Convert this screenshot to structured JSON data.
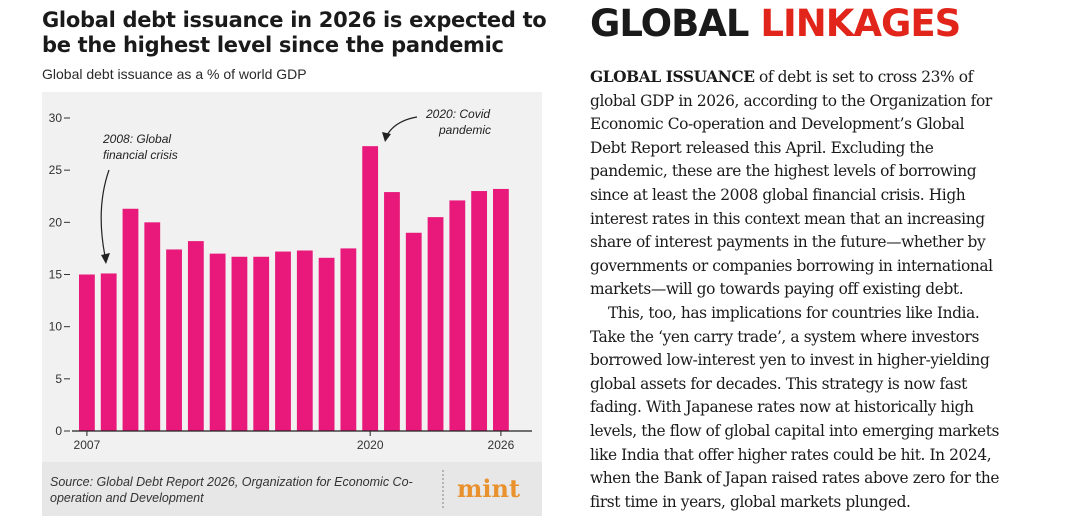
{
  "title_lines": [
    "Global debt issuance in 2026 is expected to",
    "be the highest level since the pandemic"
  ],
  "subtitle": "Global debt issuance as a % of world GDP",
  "source": "Source: Global Debt Report 2026, Organization for Economic Co-operation and Development",
  "logo": "mint",
  "colors": {
    "bar": "#e8197a",
    "heading_dark": "#1a1a1a",
    "heading_accent": "#e1251b",
    "logo": "#e8912d",
    "plot_background": "#f1f1f1"
  },
  "chart_data": {
    "type": "bar",
    "title": "Global debt issuance in 2026 is expected to be the highest level since the pandemic",
    "subtitle": "Global debt issuance as a % of world GDP",
    "xlabel": "",
    "ylabel": "",
    "categories": [
      "2007",
      "2008",
      "2009",
      "2010",
      "2011",
      "2012",
      "2013",
      "2014",
      "2015",
      "2016",
      "2017",
      "2018",
      "2019",
      "2020",
      "2021",
      "2022",
      "2023",
      "2024",
      "2025",
      "2026"
    ],
    "values": [
      15.0,
      15.1,
      21.3,
      20.0,
      17.4,
      18.2,
      17.0,
      16.7,
      16.7,
      17.2,
      17.3,
      16.6,
      17.5,
      27.3,
      22.9,
      19.0,
      20.5,
      22.1,
      23.0,
      23.2
    ],
    "ylim": [
      0,
      30
    ],
    "yticks": [
      0,
      5,
      10,
      15,
      20,
      25,
      30
    ],
    "xtick_labels": [
      {
        "category": "2007",
        "label": "2007"
      },
      {
        "category": "2020",
        "label": "2020"
      },
      {
        "category": "2026",
        "label": "2026"
      }
    ],
    "annotations": [
      {
        "category": "2008",
        "lines": [
          "2008: Global",
          "financial crisis"
        ]
      },
      {
        "category": "2020",
        "lines": [
          "2020: Covid",
          "pandemic"
        ]
      }
    ],
    "grid": false,
    "legend": "none"
  },
  "article": {
    "heading_part1": "GLOBAL",
    "heading_part2": "LINKAGES",
    "lead": "GLOBAL ISSUANCE",
    "lines": [
      " of debt is set to cross 23% of",
      "global GDP in 2026, according to the Organization for",
      "Economic Co-operation and Development’s Global",
      "Debt Report released this April. Excluding the",
      "pandemic, these are the highest levels of borrowing",
      "since at least the 2008 global financial crisis. High",
      "interest rates in this context mean that an increasing",
      "share of interest payments in the future—whether by",
      "governments or companies borrowing in international",
      "markets—will go towards paying off existing debt.",
      "This, too, has implications for countries like India.",
      "Take the ‘yen carry trade’, a system where investors",
      "borrowed low-interest yen to invest in higher-yielding",
      "global assets for decades. This strategy is now fast",
      "fading. With Japanese rates now at historically high",
      "levels, the flow of global capital into emerging markets",
      "like India that offer higher rates could be hit. In 2024,",
      "when the Bank of Japan raised rates above zero for the",
      "first time in years, global markets plunged."
    ]
  }
}
